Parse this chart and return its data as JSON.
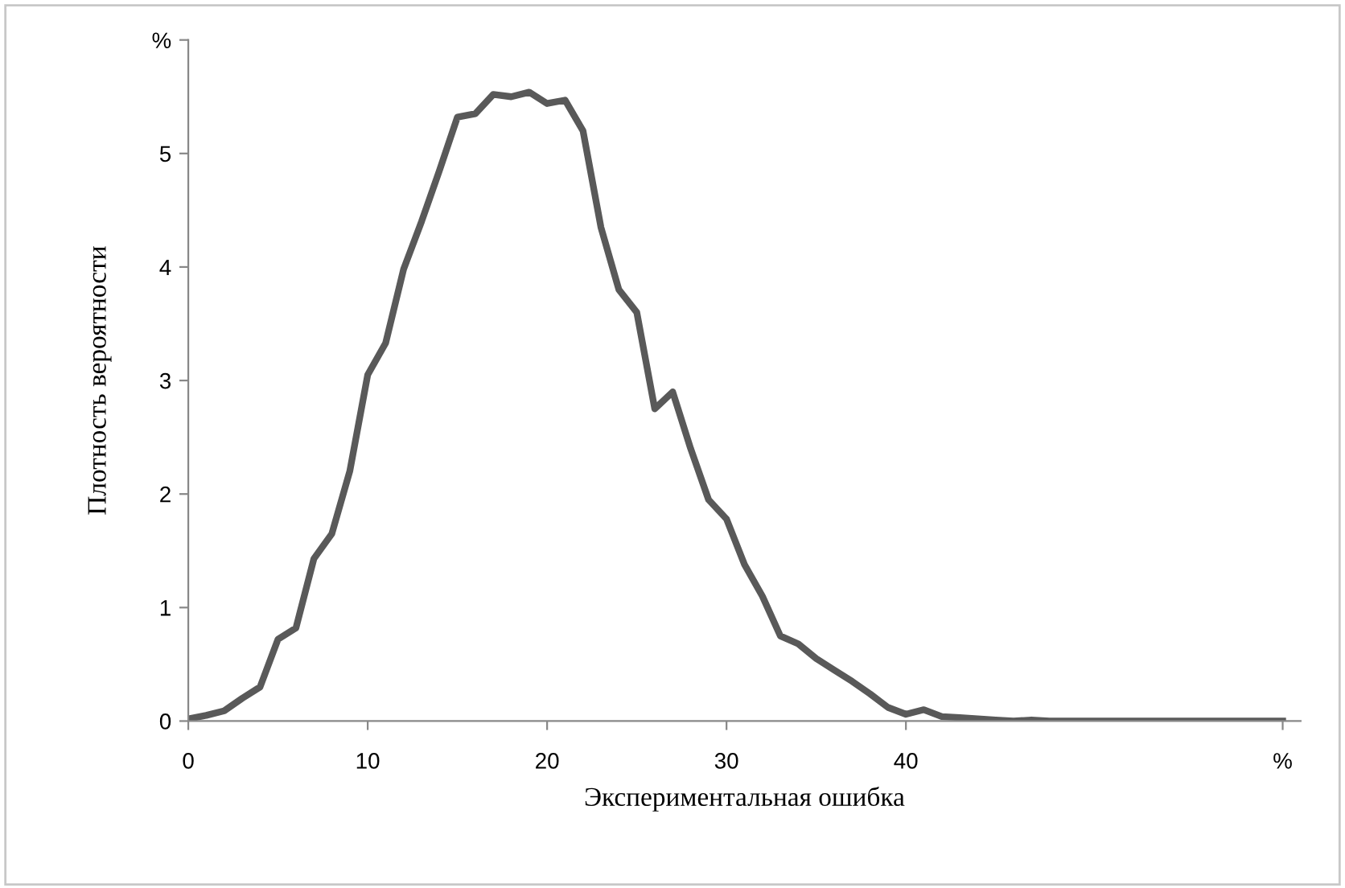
{
  "chart_data": {
    "type": "line",
    "xlabel": "Экспериментальная ошибка",
    "ylabel": "Плотность вероятности",
    "x": [
      0,
      1,
      2,
      3,
      4,
      5,
      6,
      7,
      8,
      9,
      10,
      11,
      12,
      13,
      14,
      15,
      16,
      17,
      18,
      19,
      20,
      21,
      22,
      23,
      24,
      25,
      26,
      27,
      28,
      29,
      30,
      31,
      32,
      33,
      34,
      35,
      36,
      37,
      38,
      39,
      40,
      41,
      42,
      43,
      44,
      45,
      46,
      47,
      48,
      49,
      50,
      51,
      52,
      53,
      54,
      55,
      56,
      57,
      58,
      59,
      60,
      61
    ],
    "series": [
      {
        "color": "#595959",
        "values": [
          0.02,
          0.05,
          0.09,
          0.2,
          0.3,
          0.72,
          0.82,
          1.43,
          1.65,
          2.2,
          3.05,
          3.33,
          3.98,
          4.4,
          4.85,
          5.32,
          5.35,
          5.52,
          5.5,
          5.54,
          5.44,
          5.47,
          5.2,
          4.35,
          3.8,
          3.6,
          2.75,
          2.9,
          2.4,
          1.95,
          1.78,
          1.38,
          1.1,
          0.75,
          0.68,
          0.55,
          0.45,
          0.35,
          0.24,
          0.12,
          0.06,
          0.1,
          0.04,
          0.03,
          0.02,
          0.01,
          0.0,
          0.01,
          0.0,
          0.0,
          0.0,
          0.0,
          0.0,
          0.0,
          0.0,
          0.0,
          0.0,
          0.0,
          0.0,
          0.0,
          0.0,
          0.0
        ]
      }
    ],
    "xlim": [
      0,
      62
    ],
    "xticks": [
      0,
      10,
      20,
      30,
      40,
      {
        "value": 61,
        "label": "%"
      }
    ],
    "ylim": [
      0,
      6
    ],
    "yticks": [
      0,
      1,
      2,
      3,
      4,
      5,
      {
        "value": 6,
        "label": "%"
      }
    ],
    "grid": false,
    "legend": false,
    "marker": "none",
    "line_style": "solid"
  }
}
